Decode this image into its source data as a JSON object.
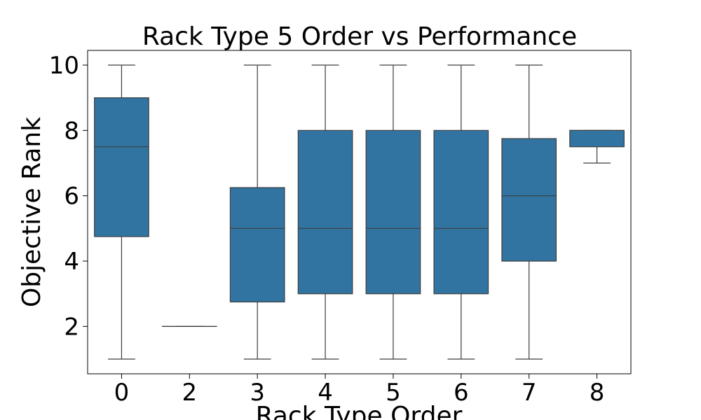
{
  "chart_data": {
    "type": "box",
    "title": "Rack Type 5 Order vs Performance",
    "xlabel": "Rack Type Order",
    "ylabel": "Objective Rank",
    "categories": [
      "0",
      "2",
      "3",
      "4",
      "5",
      "6",
      "7",
      "8"
    ],
    "yticks": [
      "2",
      "4",
      "6",
      "8",
      "10"
    ],
    "ylim": [
      0.55,
      10.45
    ],
    "grid": false,
    "box_color": "#3274a1",
    "line_color": "#3d3d3d",
    "boxes": [
      {
        "category": "0",
        "whisker_low": 1,
        "q1": 4.75,
        "median": 7.5,
        "q3": 9,
        "whisker_high": 10
      },
      {
        "category": "2",
        "whisker_low": 2,
        "q1": 2,
        "median": 2,
        "q3": 2,
        "whisker_high": 2
      },
      {
        "category": "3",
        "whisker_low": 1,
        "q1": 2.75,
        "median": 5,
        "q3": 6.25,
        "whisker_high": 10
      },
      {
        "category": "4",
        "whisker_low": 1,
        "q1": 3,
        "median": 5,
        "q3": 8,
        "whisker_high": 10
      },
      {
        "category": "5",
        "whisker_low": 1,
        "q1": 3,
        "median": 5,
        "q3": 8,
        "whisker_high": 10
      },
      {
        "category": "6",
        "whisker_low": 1,
        "q1": 3,
        "median": 5,
        "q3": 8,
        "whisker_high": 10
      },
      {
        "category": "7",
        "whisker_low": 1,
        "q1": 4,
        "median": 6,
        "q3": 7.75,
        "whisker_high": 10
      },
      {
        "category": "8",
        "whisker_low": 7,
        "q1": 7.5,
        "median": 8,
        "q3": 8,
        "whisker_high": 8
      }
    ]
  }
}
